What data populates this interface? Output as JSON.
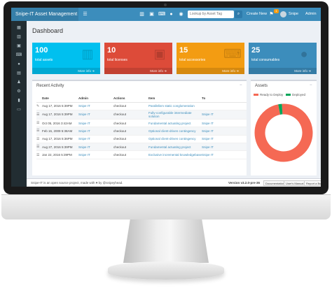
{
  "header": {
    "brand": "Snipe-IT Asset Management",
    "search_placeholder": "Lookup by Asset Tag",
    "create_new": "Create New",
    "notification_count": "1",
    "user_name": "Snipe",
    "admin_menu": "Admin"
  },
  "page": {
    "title": "Dashboard"
  },
  "stats": [
    {
      "count": "100",
      "label": "total assets",
      "more": "More info",
      "color": "#00c0ef",
      "icon": "barcode-icon"
    },
    {
      "count": "10",
      "label": "total licenses",
      "more": "More info",
      "color": "#dd4b39",
      "icon": "floppy-disk-icon"
    },
    {
      "count": "15",
      "label": "total accessories",
      "more": "More info",
      "color": "#f39c12",
      "icon": "keyboard-icon"
    },
    {
      "count": "25",
      "label": "total consumables",
      "more": "More info",
      "color": "#3c8dbc",
      "icon": "drop-icon"
    }
  ],
  "activity": {
    "title": "Recent Activity",
    "columns": [
      "Date",
      "Admin",
      "Actions",
      "Item",
      "To"
    ],
    "rows": [
      {
        "date": "Aug 17, 2016 5:39PM",
        "admin": "Snipe IT",
        "action": "checkout",
        "item": "Parallelism static conglomeration",
        "to": ""
      },
      {
        "date": "Aug 17, 2016 5:39PM",
        "admin": "Snipe IT",
        "action": "checkout",
        "item": "Fully-configurable intermediate solution",
        "to": "Snipe IT"
      },
      {
        "date": "Oct 05, 2016 3:42AM",
        "admin": "Snipe IT",
        "action": "checkout",
        "item": "Fundamental actuating project",
        "to": "Snipe IT"
      },
      {
        "date": "Feb 16, 2009 5:38AM",
        "admin": "Snipe IT",
        "action": "checkout",
        "item": "Optional client-driven contingency",
        "to": "Snipe IT"
      },
      {
        "date": "Aug 17, 2016 5:36PM",
        "admin": "Snipe IT",
        "action": "checkout",
        "item": "Optional client-driven contingency",
        "to": "Snipe IT"
      },
      {
        "date": "Aug 27, 2016 5:39PM",
        "admin": "Snipe IT",
        "action": "checkout",
        "item": "Fundamental actuating project",
        "to": "Snipe IT"
      },
      {
        "date": "Jan 22, 2016 5:39PM",
        "admin": "Snipe IT",
        "action": "checkout",
        "item": "Exclusive incremental knowledgebase",
        "to": "Snipe IT"
      }
    ]
  },
  "assets_panel": {
    "title": "Assets",
    "legend": [
      {
        "label": "Ready to Deploy",
        "color": "#f56954"
      },
      {
        "label": "Deployed",
        "color": "#00a65a"
      }
    ]
  },
  "chart_data": {
    "type": "pie",
    "categories": [
      "Ready to Deploy",
      "Deployed"
    ],
    "values": [
      98,
      2
    ],
    "colors": [
      "#f56954",
      "#00a65a"
    ]
  },
  "footer": {
    "left": "Snipe-IT is an open source project, made with ♥ by @snipeyhead.",
    "version": "Version v3.2.0-pre-36",
    "buttons": [
      "Documentation",
      "User's Manual",
      "Report a Bug"
    ]
  }
}
